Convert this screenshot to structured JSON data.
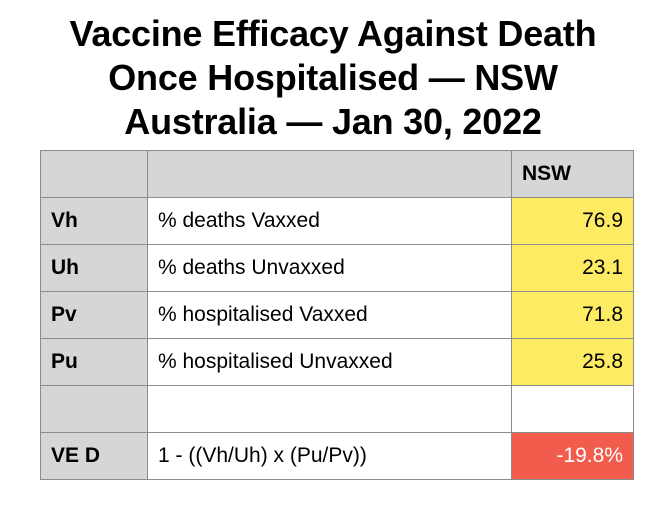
{
  "title": {
    "line1": "Vaccine Efficacy Against Death",
    "line2": "Once Hospitalised — NSW",
    "line3": "Australia — Jan 30, 2022"
  },
  "table": {
    "header": {
      "col1": "",
      "col2": "",
      "col3": "NSW"
    },
    "rows": [
      {
        "key": "Vh",
        "label": "% deaths Vaxxed",
        "value": "76.9",
        "highlight": "#fdec63"
      },
      {
        "key": "Uh",
        "label": "% deaths Unvaxxed",
        "value": "23.1",
        "highlight": "#fdec63"
      },
      {
        "key": "Pv",
        "label": "% hospitalised Vaxxed",
        "value": "71.8",
        "highlight": "#fdec63"
      },
      {
        "key": "Pu",
        "label": "% hospitalised Unvaxxed",
        "value": "25.8",
        "highlight": "#fdec63"
      },
      {
        "key": "",
        "label": "",
        "value": "",
        "highlight": "#ffffff"
      },
      {
        "key": "VE D",
        "label": "1 - ((Vh/Uh) x (Pu/Pv))",
        "value": "-19.8%",
        "highlight": "#f25c4c"
      }
    ]
  },
  "colors": {
    "header_gray": "#d6d6d6",
    "value_yellow": "#fdec63",
    "result_red": "#f25c4c",
    "border": "#8c8c8c"
  }
}
